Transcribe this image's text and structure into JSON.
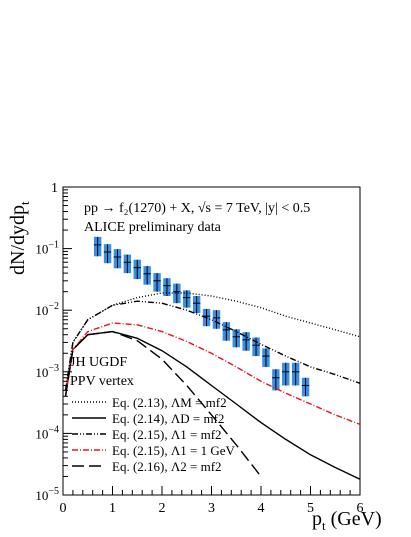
{
  "chart_data": {
    "type": "line",
    "title": "pp → f₂(1270) + X,  √s = 7 TeV,  |y| < 0.5",
    "annotations": [
      "ALICE preliminary data",
      "JH UGDF",
      "PPV vertex"
    ],
    "x_label": {
      "main": "p",
      "sub": "t",
      "rest": " (GeV)"
    },
    "y_label": {
      "main": "dN/dydp",
      "sub": "t"
    },
    "log_y": true,
    "xlim": [
      0,
      6
    ],
    "xticks": [
      0,
      1,
      2,
      3,
      4,
      5,
      6
    ],
    "ylim": [
      1e-05,
      1
    ],
    "yticks": [
      {
        "value": 1e-05,
        "label": "10",
        "exp": "−5"
      },
      {
        "value": 0.0001,
        "label": "10",
        "exp": "−4"
      },
      {
        "value": 0.001,
        "label": "10",
        "exp": "−3"
      },
      {
        "value": 0.01,
        "label": "10",
        "exp": "−2"
      },
      {
        "value": 0.1,
        "label": "10",
        "exp": "−1"
      },
      1
    ],
    "x": [
      0.05,
      0.2,
      0.5,
      1,
      1.5,
      2,
      2.5,
      3,
      3.5,
      4,
      4.5,
      5,
      5.5,
      6
    ],
    "series": [
      {
        "name": "Eq. (2.13),  ΛM = mf2",
        "color": "#000000",
        "dash": "1,2",
        "values": [
          0.0005,
          0.003,
          0.007,
          0.012,
          0.016,
          0.019,
          0.019,
          0.017,
          0.014,
          0.011,
          0.008,
          0.0062,
          0.0048,
          0.0037
        ]
      },
      {
        "name": "Eq. (2.14),  ΛD = mf2",
        "color": "#000000",
        "dash": "none",
        "values": [
          0.0004,
          0.0023,
          0.004,
          0.0045,
          0.0035,
          0.0022,
          0.0012,
          0.0006,
          0.0003,
          0.00015,
          8e-05,
          4.5e-05,
          2.8e-05,
          1.8e-05
        ]
      },
      {
        "name": "Eq. (2.15),  Λ1 = mf2",
        "color": "#000000",
        "dash": "6,2,1,2,1,2",
        "values": [
          0.0005,
          0.003,
          0.007,
          0.012,
          0.014,
          0.013,
          0.01,
          0.007,
          0.0045,
          0.0028,
          0.0018,
          0.0012,
          0.0009,
          0.00065
        ]
      },
      {
        "name": "Eq. (2.15),  Λ1 = 1 GeV",
        "color": "#e8141c",
        "dash": "6,2,1,2",
        "values": [
          0.0004,
          0.0023,
          0.0045,
          0.0062,
          0.0058,
          0.0045,
          0.0031,
          0.002,
          0.0012,
          0.0007,
          0.00045,
          0.0003,
          0.0002,
          0.00014
        ]
      },
      {
        "name": "Eq. (2.16),  Λ2 = mf2",
        "color": "#000000",
        "dash": "12,5",
        "values": [
          0.0004,
          0.0023,
          0.004,
          0.0045,
          0.0032,
          0.0016,
          0.0006,
          0.0002,
          6.5e-05,
          2e-05,
          null,
          null,
          null,
          null
        ]
      }
    ],
    "data_points": {
      "color": "#3a8ee6",
      "x": [
        0.7,
        0.9,
        1.1,
        1.3,
        1.5,
        1.7,
        1.9,
        2.1,
        2.3,
        2.5,
        2.7,
        2.9,
        3.1,
        3.3,
        3.5,
        3.7,
        3.9,
        4.1,
        4.3,
        4.5,
        4.7,
        4.9
      ],
      "values": [
        0.115,
        0.088,
        0.073,
        0.06,
        0.049,
        0.039,
        0.03,
        0.025,
        0.02,
        0.016,
        0.013,
        0.008,
        0.0075,
        0.0048,
        0.0037,
        0.0033,
        0.0027,
        0.0018,
        0.0008,
        0.001,
        0.001,
        0.0006
      ],
      "errors": [
        0.04,
        0.03,
        0.025,
        0.02,
        0.017,
        0.013,
        0.01,
        0.008,
        0.007,
        0.005,
        0.004,
        0.0025,
        0.0025,
        0.0016,
        0.0012,
        0.0011,
        0.0009,
        0.0006,
        0.0003,
        0.0004,
        0.0004,
        0.0002
      ]
    }
  }
}
